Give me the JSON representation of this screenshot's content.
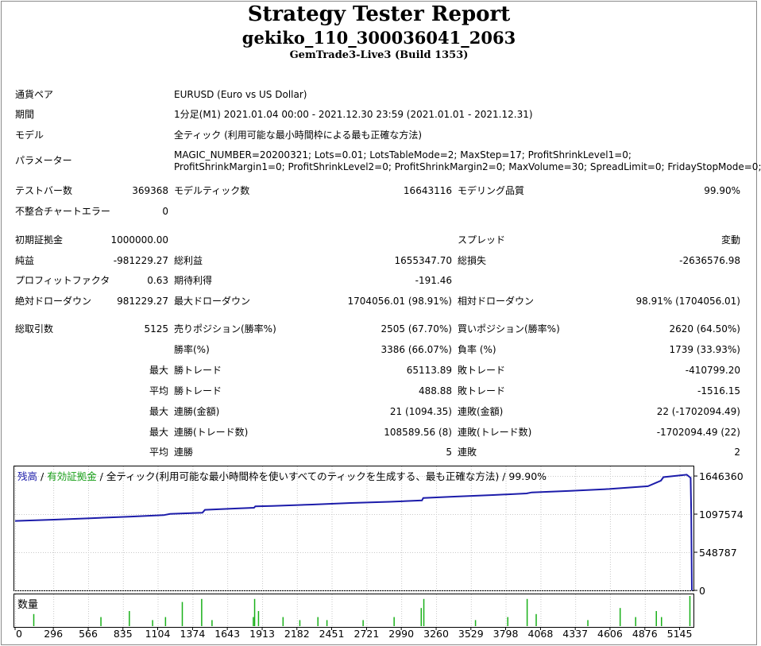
{
  "header": {
    "title": "Strategy Tester Report",
    "subtitle": "gekiko_110_300036041_2063",
    "build": "GemTrade3-Live3 (Build 1353)"
  },
  "info": {
    "symbol_label": "通貨ペア",
    "symbol_value": "EURUSD (Euro vs US Dollar)",
    "period_label": "期間",
    "period_value": "1分足(M1) 2021.01.04 00:00 - 2021.12.30 23:59 (2021.01.01 - 2021.12.31)",
    "model_label": "モデル",
    "model_value": "全ティック (利用可能な最小時間枠による最も正確な方法)",
    "params_label": "パラメーター",
    "params_line1": "MAGIC_NUMBER=20200321; Lots=0.01; LotsTableMode=2; MaxStep=17; ProfitShrinkLevel1=0;",
    "params_line2": "ProfitShrinkMargin1=0; ProfitShrinkLevel2=0; ProfitShrinkMargin2=0; MaxVolume=30; SpreadLimit=0; FridayStopMode=0;"
  },
  "stats": {
    "bars_label": "テストバー数",
    "bars_value": "369368",
    "ticks_label": "モデルティック数",
    "ticks_value": "16643116",
    "quality_label": "モデリング品質",
    "quality_value": "99.90%",
    "mismatch_label": "不整合チャートエラー",
    "mismatch_value": "0",
    "deposit_label": "初期証拠金",
    "deposit_value": "1000000.00",
    "spread_label": "スプレッド",
    "spread_value": "変動",
    "net_label": "純益",
    "net_value": "-981229.27",
    "gross_profit_label": "総利益",
    "gross_profit_value": "1655347.70",
    "gross_loss_label": "総損失",
    "gross_loss_value": "-2636576.98",
    "pf_label": "プロフィットファクタ",
    "pf_value": "0.63",
    "expected_label": "期待利得",
    "expected_value": "-191.46",
    "abs_dd_label": "絶対ドローダウン",
    "abs_dd_value": "981229.27",
    "max_dd_label": "最大ドローダウン",
    "max_dd_value": "1704056.01 (98.91%)",
    "rel_dd_label": "相対ドローダウン",
    "rel_dd_value": "98.91% (1704056.01)",
    "total_label": "総取引数",
    "total_value": "5125",
    "short_label": "売りポジション(勝率%)",
    "short_value": "2505 (67.70%)",
    "long_label": "買いポジション(勝率%)",
    "long_value": "2620 (64.50%)",
    "win_pct_label": "勝率(%)",
    "win_pct_value": "3386 (66.07%)",
    "loss_pct_label": "負率 (%)",
    "loss_pct_value": "1739 (33.93%)",
    "max_label": "最大",
    "avg_label": "平均",
    "largest_win_label": "勝トレード",
    "largest_win_value": "65113.89",
    "largest_loss_label": "敗トレード",
    "largest_loss_value": "-410799.20",
    "avg_win_label": "勝トレード",
    "avg_win_value": "488.88",
    "avg_loss_label": "敗トレード",
    "avg_loss_value": "-1516.15",
    "max_cw_amt_label": "連勝(金額)",
    "max_cw_amt_value": "21 (1094.35)",
    "max_cl_amt_label": "連敗(金額)",
    "max_cl_amt_value": "22 (-1702094.49)",
    "max_cw_cnt_label": "連勝(トレード数)",
    "max_cw_cnt_value": "108589.56 (8)",
    "max_cl_cnt_label": "連敗(トレード数)",
    "max_cl_cnt_value": "-1702094.49 (22)",
    "avg_cw_label": "連勝",
    "avg_cw_value": "5",
    "avg_cl_label": "連敗",
    "avg_cl_value": "2"
  },
  "chart_data": {
    "type": "line",
    "legend": {
      "balance": "残高",
      "sep1": " / ",
      "equity": "有効証拠金",
      "sep2": " / 全ティック(利用可能な最小時間枠を使いすべてのティックを生成する、最も正確な方法) / 99.90%"
    },
    "ylim": [
      0,
      1750000
    ],
    "y_ticks": [
      "0",
      "548787",
      "1097574",
      "1646360"
    ],
    "y_tick_values": [
      0,
      548787,
      1097574,
      1646360
    ],
    "xlim": [
      0,
      5240
    ],
    "x_ticks": [
      "0",
      "296",
      "566",
      "835",
      "1104",
      "1374",
      "1643",
      "1913",
      "2182",
      "2451",
      "2721",
      "2990",
      "3260",
      "3529",
      "3798",
      "4068",
      "4337",
      "4606",
      "4876",
      "5145"
    ],
    "x_tick_values": [
      0,
      296,
      566,
      835,
      1104,
      1374,
      1643,
      1913,
      2182,
      2451,
      2721,
      2990,
      3260,
      3529,
      3798,
      4068,
      4337,
      4606,
      4876,
      5145
    ],
    "balance_points": [
      [
        0,
        1000000
      ],
      [
        300,
        1018000
      ],
      [
        600,
        1040000
      ],
      [
        900,
        1063000
      ],
      [
        1150,
        1083000
      ],
      [
        1200,
        1100000
      ],
      [
        1450,
        1118000
      ],
      [
        1470,
        1160000
      ],
      [
        1700,
        1178000
      ],
      [
        1850,
        1190000
      ],
      [
        1860,
        1210000
      ],
      [
        1990,
        1215000
      ],
      [
        2300,
        1235000
      ],
      [
        2600,
        1258000
      ],
      [
        2900,
        1275000
      ],
      [
        3150,
        1295000
      ],
      [
        3160,
        1330000
      ],
      [
        3400,
        1350000
      ],
      [
        3700,
        1372000
      ],
      [
        3960,
        1395000
      ],
      [
        4000,
        1410000
      ],
      [
        4300,
        1432000
      ],
      [
        4600,
        1460000
      ],
      [
        4900,
        1500000
      ],
      [
        5000,
        1580000
      ],
      [
        5020,
        1630000
      ],
      [
        5200,
        1665000
      ],
      [
        5230,
        1620000
      ],
      [
        5235,
        1100000
      ],
      [
        5240,
        0
      ]
    ],
    "volume_label": "数量",
    "volume_bars": [
      [
        140,
        0.4
      ],
      [
        660,
        0.3
      ],
      [
        880,
        0.5
      ],
      [
        1060,
        0.2
      ],
      [
        1160,
        0.3
      ],
      [
        1290,
        0.8
      ],
      [
        1440,
        0.9
      ],
      [
        1520,
        0.2
      ],
      [
        1840,
        0.3
      ],
      [
        1850,
        0.9
      ],
      [
        1880,
        0.5
      ],
      [
        2070,
        0.3
      ],
      [
        2200,
        0.2
      ],
      [
        2340,
        0.3
      ],
      [
        2410,
        0.2
      ],
      [
        2690,
        0.2
      ],
      [
        2930,
        0.3
      ],
      [
        3140,
        0.6
      ],
      [
        3160,
        0.9
      ],
      [
        3560,
        0.2
      ],
      [
        3810,
        0.3
      ],
      [
        3960,
        0.9
      ],
      [
        4030,
        0.4
      ],
      [
        4430,
        0.2
      ],
      [
        4680,
        0.6
      ],
      [
        4800,
        0.3
      ],
      [
        4960,
        0.5
      ],
      [
        5000,
        0.3
      ],
      [
        5220,
        1.0
      ]
    ]
  }
}
